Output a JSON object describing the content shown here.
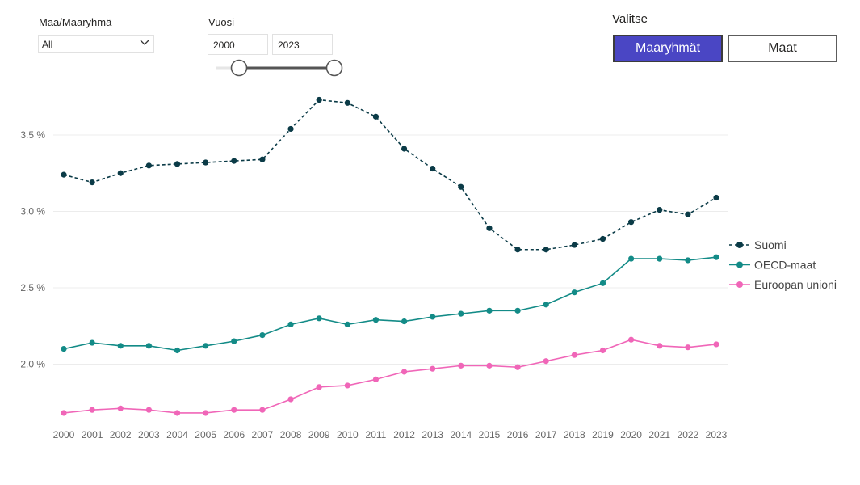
{
  "filters": {
    "country_label": "Maa/Maaryhmä",
    "country_value": "All",
    "year_label": "Vuosi",
    "year_start": "2000",
    "year_end": "2023",
    "slider_range": [
      0,
      1
    ]
  },
  "selector": {
    "title": "Valitse",
    "options": [
      "Maaryhmät",
      "Maat"
    ],
    "active": "Maaryhmät"
  },
  "colors": {
    "accent": "#4a46c4"
  },
  "chart_data": {
    "type": "line",
    "x": [
      "2000",
      "2001",
      "2002",
      "2003",
      "2004",
      "2005",
      "2006",
      "2007",
      "2008",
      "2009",
      "2010",
      "2011",
      "2012",
      "2013",
      "2014",
      "2015",
      "2016",
      "2017",
      "2018",
      "2019",
      "2020",
      "2021",
      "2022",
      "2023"
    ],
    "ylim": [
      1.68,
      3.8
    ],
    "yticks": [
      2.0,
      2.5,
      3.0,
      3.5
    ],
    "ytick_labels": [
      "2.0 %",
      "2.5 %",
      "3.0 %",
      "3.5 %"
    ],
    "grid": true,
    "legend_position": "right",
    "series": [
      {
        "name": "Suomi",
        "color": "#0b3b47",
        "dashed": true,
        "values": [
          3.24,
          3.19,
          3.25,
          3.3,
          3.31,
          3.32,
          3.33,
          3.34,
          3.54,
          3.73,
          3.71,
          3.62,
          3.41,
          3.28,
          3.16,
          2.89,
          2.75,
          2.75,
          2.78,
          2.82,
          2.93,
          3.01,
          2.98,
          3.09
        ]
      },
      {
        "name": "OECD-maat",
        "color": "#138b87",
        "dashed": false,
        "values": [
          2.1,
          2.14,
          2.12,
          2.12,
          2.09,
          2.12,
          2.15,
          2.19,
          2.26,
          2.3,
          2.26,
          2.29,
          2.28,
          2.31,
          2.33,
          2.35,
          2.35,
          2.39,
          2.47,
          2.53,
          2.69,
          2.69,
          2.68,
          2.7
        ]
      },
      {
        "name": "Euroopan unioni",
        "color": "#f066b8",
        "dashed": false,
        "values": [
          1.68,
          1.7,
          1.71,
          1.7,
          1.68,
          1.68,
          1.7,
          1.7,
          1.77,
          1.85,
          1.86,
          1.9,
          1.95,
          1.97,
          1.99,
          1.99,
          1.98,
          2.02,
          2.06,
          2.09,
          2.16,
          2.12,
          2.11,
          2.13
        ]
      }
    ]
  }
}
